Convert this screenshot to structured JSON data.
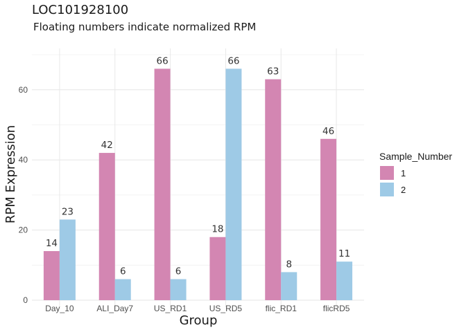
{
  "chart_data": {
    "type": "bar",
    "title": "LOC101928100",
    "subtitle": "Floating numbers indicate normalized RPM",
    "xlabel": "Group",
    "ylabel": "RPM Expression",
    "categories": [
      "Day_10",
      "ALI_Day7",
      "US_RD1",
      "US_RD5",
      "flic_RD1",
      "flicRD5"
    ],
    "series": [
      {
        "name": "1",
        "values": [
          14,
          42,
          66,
          18,
          63,
          46
        ],
        "color": "#D386B2"
      },
      {
        "name": "2",
        "values": [
          23,
          6,
          6,
          66,
          8,
          11
        ],
        "color": "#9ECAE6"
      }
    ],
    "ylim": [
      0,
      72
    ],
    "yticks": [
      0,
      20,
      40,
      60
    ],
    "grid": true,
    "legend": {
      "title": "Sample_Number",
      "position": "right"
    }
  }
}
